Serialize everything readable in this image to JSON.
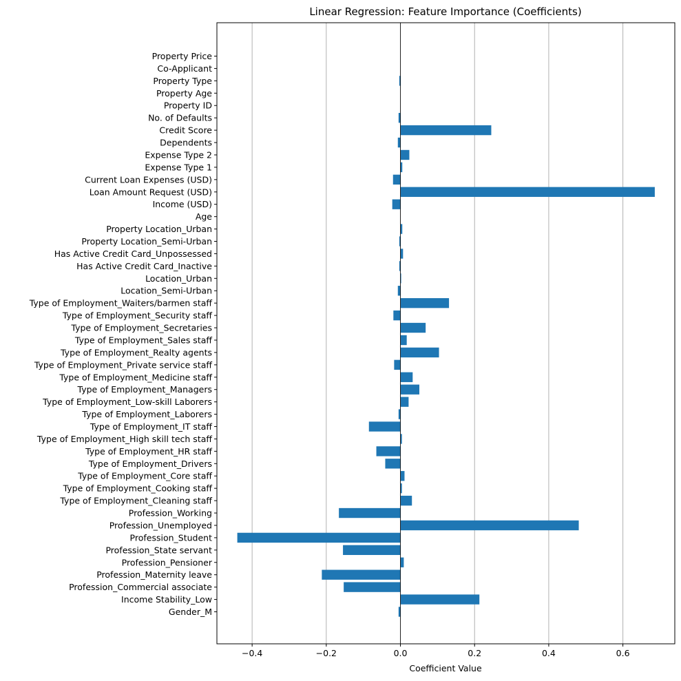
{
  "chart_data": {
    "type": "bar",
    "orientation": "horizontal",
    "title": "Linear Regression: Feature Importance (Coefficients)",
    "xlabel": "Coefficient Value",
    "ylabel": "",
    "xlim": [
      -0.495,
      0.74
    ],
    "xticks": [
      -0.4,
      -0.2,
      0.0,
      0.2,
      0.4,
      0.6
    ],
    "xtick_labels": [
      "−0.4",
      "−0.2",
      "0.0",
      "0.2",
      "0.4",
      "0.6"
    ],
    "grid": "x-axis vertical lines",
    "zero_line": true,
    "bar_color": "#1f77b4",
    "categories": [
      "Gender_M",
      "Income Stability_Low",
      "Profession_Commercial associate",
      "Profession_Maternity leave",
      "Profession_Pensioner",
      "Profession_State servant",
      "Profession_Student",
      "Profession_Unemployed",
      "Profession_Working",
      "Type of Employment_Cleaning staff",
      "Type of Employment_Cooking staff",
      "Type of Employment_Core staff",
      "Type of Employment_Drivers",
      "Type of Employment_HR staff",
      "Type of Employment_High skill tech staff",
      "Type of Employment_IT staff",
      "Type of Employment_Laborers",
      "Type of Employment_Low-skill Laborers",
      "Type of Employment_Managers",
      "Type of Employment_Medicine staff",
      "Type of Employment_Private service staff",
      "Type of Employment_Realty agents",
      "Type of Employment_Sales staff",
      "Type of Employment_Secretaries",
      "Type of Employment_Security staff",
      "Type of Employment_Waiters/barmen staff",
      "Location_Semi-Urban",
      "Location_Urban",
      "Has Active Credit Card_Inactive",
      "Has Active Credit Card_Unpossessed",
      "Property Location_Semi-Urban",
      "Property Location_Urban",
      "Age",
      "Income (USD)",
      "Loan Amount Request (USD)",
      "Current Loan Expenses (USD)",
      "Expense Type 1",
      "Expense Type 2",
      "Dependents",
      "Credit Score",
      "No. of Defaults",
      "Property ID",
      "Property Age",
      "Property Type",
      "Co-Applicant",
      "Property Price"
    ],
    "values": [
      -0.005,
      0.213,
      -0.153,
      -0.212,
      0.009,
      -0.155,
      -0.44,
      0.481,
      -0.166,
      0.031,
      0.004,
      0.011,
      -0.041,
      -0.065,
      0.004,
      -0.085,
      -0.005,
      0.022,
      0.051,
      0.033,
      -0.017,
      0.104,
      0.017,
      0.068,
      -0.019,
      0.131,
      -0.007,
      0.002,
      -0.003,
      0.007,
      -0.003,
      0.005,
      0.0,
      -0.022,
      0.686,
      -0.02,
      0.005,
      0.024,
      -0.007,
      0.245,
      -0.005,
      0.0,
      0.0,
      -0.003,
      0.0,
      0.0
    ]
  }
}
